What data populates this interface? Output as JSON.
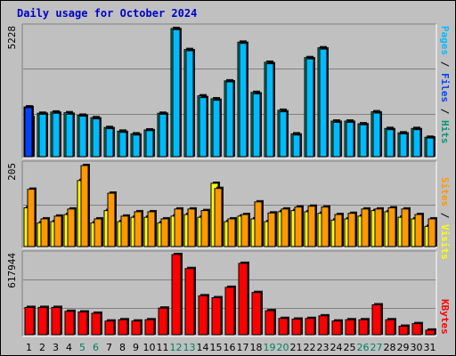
{
  "title": "Daily usage for October 2024",
  "colors": {
    "pages": "#0044ff",
    "files": "#00bbff",
    "hits": "#009977",
    "visits": "#ffff00",
    "sites": "#ff9900",
    "kbytes": "#ff0000",
    "weekend_day": "#00805c",
    "weekday": "#000000"
  },
  "chart_data": [
    {
      "type": "bar",
      "title": "Daily usage for October 2024",
      "y_max_label": "5228",
      "legend": [
        "Pages",
        "Files",
        "Hits"
      ],
      "categories": [
        "1",
        "2",
        "3",
        "4",
        "5",
        "6",
        "7",
        "8",
        "9",
        "10",
        "11",
        "12",
        "13",
        "14",
        "15",
        "16",
        "17",
        "18",
        "19",
        "20",
        "21",
        "22",
        "23",
        "24",
        "25",
        "26",
        "27",
        "28",
        "29",
        "30",
        "31"
      ],
      "series": [
        {
          "name": "Hits",
          "values": [
            2030,
            1770,
            1820,
            1790,
            1690,
            1590,
            1190,
            1040,
            930,
            1090,
            1770,
            5228,
            4370,
            2480,
            2360,
            3090,
            4670,
            2620,
            3850,
            1890,
            930,
            4040,
            4440,
            1450,
            1450,
            1340,
            1830,
            1150,
            970,
            1150,
            790
          ]
        },
        {
          "name": "Files",
          "values": [
            1590,
            1730,
            1770,
            1730,
            1650,
            1540,
            1140,
            990,
            880,
            1060,
            1730,
            5180,
            4320,
            2410,
            2300,
            3050,
            4620,
            2560,
            3790,
            1830,
            880,
            3990,
            4390,
            1400,
            1400,
            1300,
            1780,
            1100,
            930,
            1100,
            760
          ]
        },
        {
          "name": "Pages",
          "values": [
            2000,
            0,
            0,
            0,
            0,
            0,
            0,
            0,
            0,
            0,
            0,
            0,
            0,
            0,
            0,
            0,
            0,
            0,
            0,
            0,
            0,
            0,
            0,
            0,
            0,
            0,
            0,
            0,
            0,
            0,
            0
          ]
        }
      ]
    },
    {
      "type": "bar",
      "y_max_label": "205",
      "legend": [
        "Sites",
        "Visits"
      ],
      "categories": [
        "1",
        "2",
        "3",
        "4",
        "5",
        "6",
        "7",
        "8",
        "9",
        "10",
        "11",
        "12",
        "13",
        "14",
        "15",
        "16",
        "17",
        "18",
        "19",
        "20",
        "21",
        "22",
        "23",
        "24",
        "25",
        "26",
        "27",
        "28",
        "29",
        "30",
        "31"
      ],
      "series": [
        {
          "name": "Visits",
          "values": [
            98,
            60,
            63,
            81,
            167,
            60,
            91,
            63,
            74,
            74,
            60,
            77,
            81,
            74,
            160,
            63,
            77,
            70,
            63,
            88,
            91,
            88,
            84,
            67,
            70,
            77,
            91,
            88,
            74,
            70,
            51
          ]
        },
        {
          "name": "Sites",
          "values": [
            145,
            70,
            77,
            95,
            205,
            70,
            135,
            77,
            88,
            88,
            70,
            95,
            95,
            91,
            147,
            70,
            81,
            113,
            85,
            95,
            100,
            102,
            100,
            81,
            84,
            95,
            95,
            98,
            95,
            81,
            70
          ]
        }
      ]
    },
    {
      "type": "bar",
      "y_max_label": "617944",
      "legend": [
        "KBytes"
      ],
      "categories": [
        "1",
        "2",
        "3",
        "4",
        "5",
        "6",
        "7",
        "8",
        "9",
        "10",
        "11",
        "12",
        "13",
        "14",
        "15",
        "16",
        "17",
        "18",
        "19",
        "20",
        "21",
        "22",
        "23",
        "24",
        "25",
        "26",
        "27",
        "28",
        "29",
        "30",
        "31"
      ],
      "series": [
        {
          "name": "KBytes",
          "values": [
            210000,
            210000,
            210000,
            180000,
            175000,
            165000,
            105000,
            115000,
            105000,
            115000,
            205000,
            617944,
            510000,
            300000,
            285000,
            365000,
            550000,
            325000,
            185000,
            125000,
            120000,
            125000,
            145000,
            105000,
            115000,
            115000,
            230000,
            115000,
            65000,
            85000,
            35000
          ]
        }
      ]
    }
  ],
  "weekend_days": [
    "5",
    "12",
    "19",
    "26"
  ],
  "highlight_days": [
    "6",
    "13",
    "20",
    "27"
  ]
}
